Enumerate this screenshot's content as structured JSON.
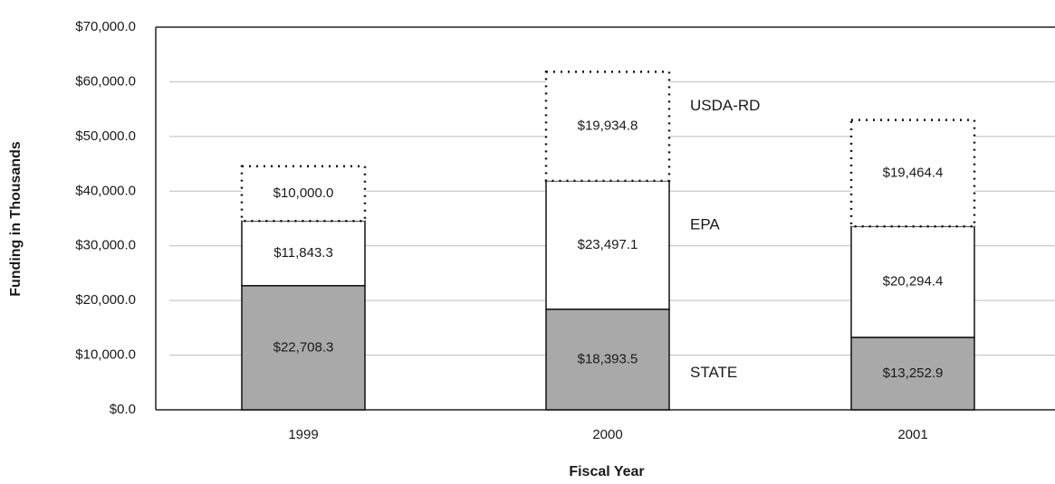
{
  "chart_data": {
    "type": "stacked_bar",
    "x_label": "Fiscal Year",
    "y_label": "Funding in Thousands",
    "categories": [
      "1999",
      "2000",
      "2001"
    ],
    "series": [
      {
        "name": "STATE",
        "color": "#a9a9a9",
        "border_style": "solid",
        "values": [
          22708.3,
          18393.5,
          13252.9
        ],
        "value_labels": [
          "$22,708.3",
          "$18,393.5",
          "$13,252.9"
        ]
      },
      {
        "name": "EPA",
        "color": "#ffffff",
        "border_style": "solid",
        "values": [
          11843.3,
          23497.1,
          20294.4
        ],
        "value_labels": [
          "$11,843.3",
          "$23,497.1",
          "$20,294.4"
        ]
      },
      {
        "name": "USDA-RD",
        "color": "#ffffff",
        "border_style": "dotted",
        "values": [
          10000.0,
          19934.8,
          19464.4
        ],
        "value_labels": [
          "$10,000.0",
          "$19,934.8",
          "$19,464.4"
        ]
      }
    ],
    "ylim": [
      0,
      70000
    ],
    "yticks": [
      {
        "value": 0,
        "label": "$0.0"
      },
      {
        "value": 10000,
        "label": "$10,000.0"
      },
      {
        "value": 20000,
        "label": "$20,000.0"
      },
      {
        "value": 30000,
        "label": "$30,000.0"
      },
      {
        "value": 40000,
        "label": "$40,000.0"
      },
      {
        "value": 50000,
        "label": "$50,000.0"
      },
      {
        "value": 60000,
        "label": "$60,000.0"
      },
      {
        "value": 70000,
        "label": "$70,000.0"
      }
    ],
    "grid": true
  }
}
